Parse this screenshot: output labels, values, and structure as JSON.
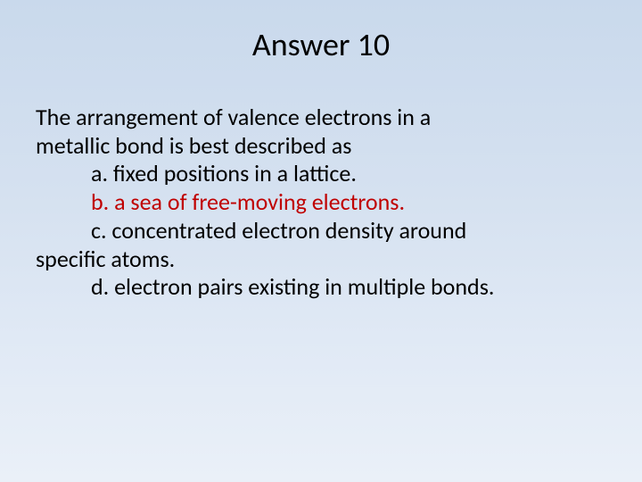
{
  "slide": {
    "title": "Answer 10",
    "question_line1": "The arrangement of valence electrons in a",
    "question_line2": "metallic bond is best described as",
    "options": {
      "a": "a. fixed positions in a lattice.",
      "b": "b. a sea of free-moving electrons.",
      "c_line1": "c. concentrated electron density around",
      "c_line2": "specific atoms.",
      "d": "d. electron pairs existing in multiple bonds."
    },
    "colors": {
      "title": "#000000",
      "body": "#000000",
      "highlight": "#c00000",
      "bg_top": "#c9d9ec",
      "bg_bottom": "#eaf0f8"
    },
    "fonts": {
      "title_size_pt": 36,
      "body_size_pt": 26,
      "family": "Calibri"
    },
    "correct_option": "b"
  }
}
